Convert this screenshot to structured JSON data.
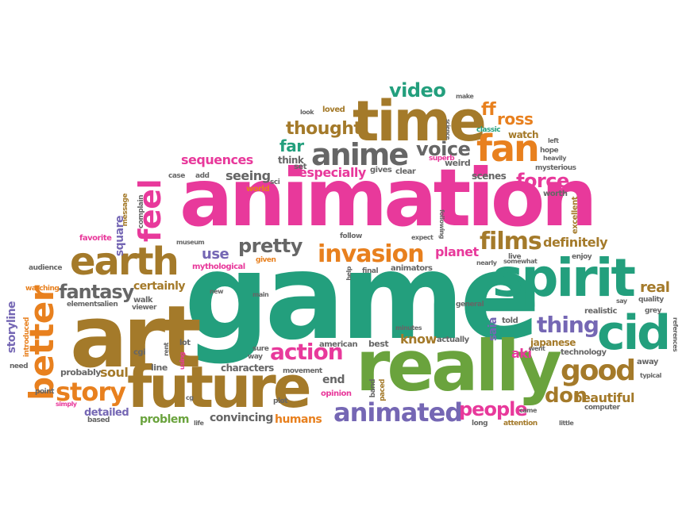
{
  "colors": {
    "brown": "#a47a2a",
    "green": "#239f7d",
    "pink": "#e8399b",
    "orange": "#e8801e",
    "lime": "#6aa33d",
    "purple": "#7567b4",
    "gray": "#666666",
    "red": "#d94b2a"
  },
  "words": {
    "game": "game",
    "animation": "animation",
    "art": "art",
    "really": "really",
    "future": "future",
    "spirit": "spirit",
    "time": "time",
    "cid": "cid",
    "earth": "earth",
    "fan": "fan",
    "better": "better",
    "feel": "feel",
    "anime": "anime",
    "good": "good",
    "animated": "animated",
    "invasion": "invasion",
    "story": "story",
    "fantasy": "fantasy",
    "action": "action",
    "films": "films",
    "thing": "thing",
    "people": "people",
    "voice": "voice",
    "pretty": "pretty",
    "thought": "thought",
    "video": "video",
    "force": "force",
    "don": "don",
    "certainly": "certainly",
    "definitely": "definitely",
    "beautiful": "beautiful",
    "sequences": "sequences",
    "far": "far",
    "ff": "ff",
    "ross": "ross",
    "especially": "especially",
    "seeing": "seeing",
    "use": "use",
    "planet": "planet",
    "know": "know",
    "convincing": "convincing",
    "problem": "problem",
    "humans": "humans",
    "detailed": "detailed",
    "soul": "soul",
    "characters": "characters",
    "end": "end",
    "real": "real",
    "aki": "aki",
    "saia": "saia",
    "japanese": "japanese",
    "scenes": "scenes",
    "watch": "watch",
    "storyline": "storyline",
    "square": "square",
    "mythological": "mythological",
    "animators": "animators",
    "think": "think",
    "loved": "loved",
    "classic": "classic",
    "hope": "hope",
    "mysterious": "mysterious",
    "worth": "worth",
    "excellent": "excellent",
    "superb": "superb",
    "weird": "weird",
    "gives": "gives",
    "clear": "clear",
    "set": "set",
    "world": "world",
    "sci": "sci",
    "case": "case",
    "add": "add",
    "favorite": "favorite",
    "complain": "complain",
    "message": "message",
    "audience": "audience",
    "watching": "watching",
    "elements": "elements",
    "alien": "alien",
    "walk": "walk",
    "viewer": "viewer",
    "introduced": "introduced",
    "need": "need",
    "point": "point",
    "simply": "simply",
    "based": "based",
    "probably": "probably",
    "cgi": "cgi",
    "line": "line",
    "lot": "lot",
    "using": "using",
    "feel2": "feel",
    "sure": "sure",
    "way": "way",
    "american": "american",
    "best": "best",
    "minutes": "minutes",
    "actually": "actually",
    "told": "told",
    "general": "general",
    "movement": "movement",
    "opinion": "opinion",
    "plot": "plot",
    "band": "band",
    "paced": "paced",
    "long": "long",
    "came": "came",
    "attention": "attention",
    "computer": "computer",
    "little": "little",
    "technology": "technology",
    "went": "went",
    "away": "away",
    "typical": "typical",
    "grey": "grey",
    "quality": "quality",
    "references": "references",
    "realistic": "realistic",
    "say": "say",
    "enjoy": "enjoy",
    "live": "live",
    "somewhat": "somewhat",
    "nearly": "nearly",
    "expect": "expect",
    "following": "following",
    "follow": "follow",
    "final": "final",
    "help": "help",
    "given": "given",
    "museum": "museum",
    "new": "new",
    "main": "main",
    "look": "look",
    "make": "make",
    "science": "science",
    "left": "left",
    "heavily": "heavily",
    "cg": "cg",
    "life": "life",
    "rent": "rent"
  }
}
